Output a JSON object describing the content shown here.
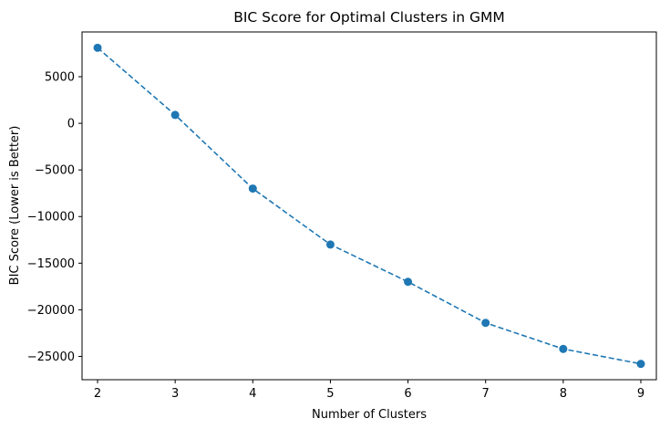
{
  "chart_data": {
    "type": "line",
    "title": "BIC Score for Optimal Clusters in GMM",
    "xlabel": "Number of Clusters",
    "ylabel": "BIC Score (Lower is Better)",
    "x": [
      2,
      3,
      4,
      5,
      6,
      7,
      8,
      9
    ],
    "series": [
      {
        "values": [
          8100,
          900,
          -7000,
          -13000,
          -17000,
          -21400,
          -24200,
          -25800
        ],
        "color": "#1f77b4",
        "line_style": "dashed",
        "marker": "circle"
      }
    ],
    "xlim": [
      1.8,
      9.2
    ],
    "ylim": [
      -27500,
      9800
    ],
    "xticks": [
      "2",
      "3",
      "4",
      "5",
      "6",
      "7",
      "8",
      "9"
    ],
    "yticks": [
      "5000",
      "0",
      "−5000",
      "−10000",
      "−15000",
      "−20000",
      "−25000"
    ],
    "ytick_values": [
      5000,
      0,
      -5000,
      -10000,
      -15000,
      -20000,
      -25000
    ],
    "grid": false,
    "legend": "none"
  }
}
